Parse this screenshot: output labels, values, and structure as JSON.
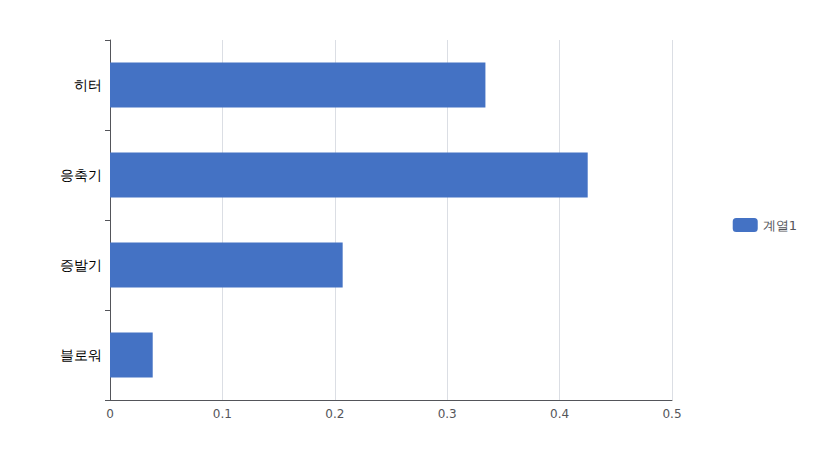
{
  "chart_data": {
    "type": "bar",
    "orientation": "horizontal",
    "categories": [
      "히터",
      "응축기",
      "증발기",
      "블로워"
    ],
    "series": [
      {
        "name": "계열1",
        "color": "#4472C4",
        "values": [
          0.334,
          0.425,
          0.207,
          0.038
        ]
      }
    ],
    "xlim": [
      0,
      0.5
    ],
    "xticks": [
      0,
      0.1,
      0.2,
      0.3,
      0.4,
      0.5
    ],
    "grid": true,
    "legend": "right"
  }
}
